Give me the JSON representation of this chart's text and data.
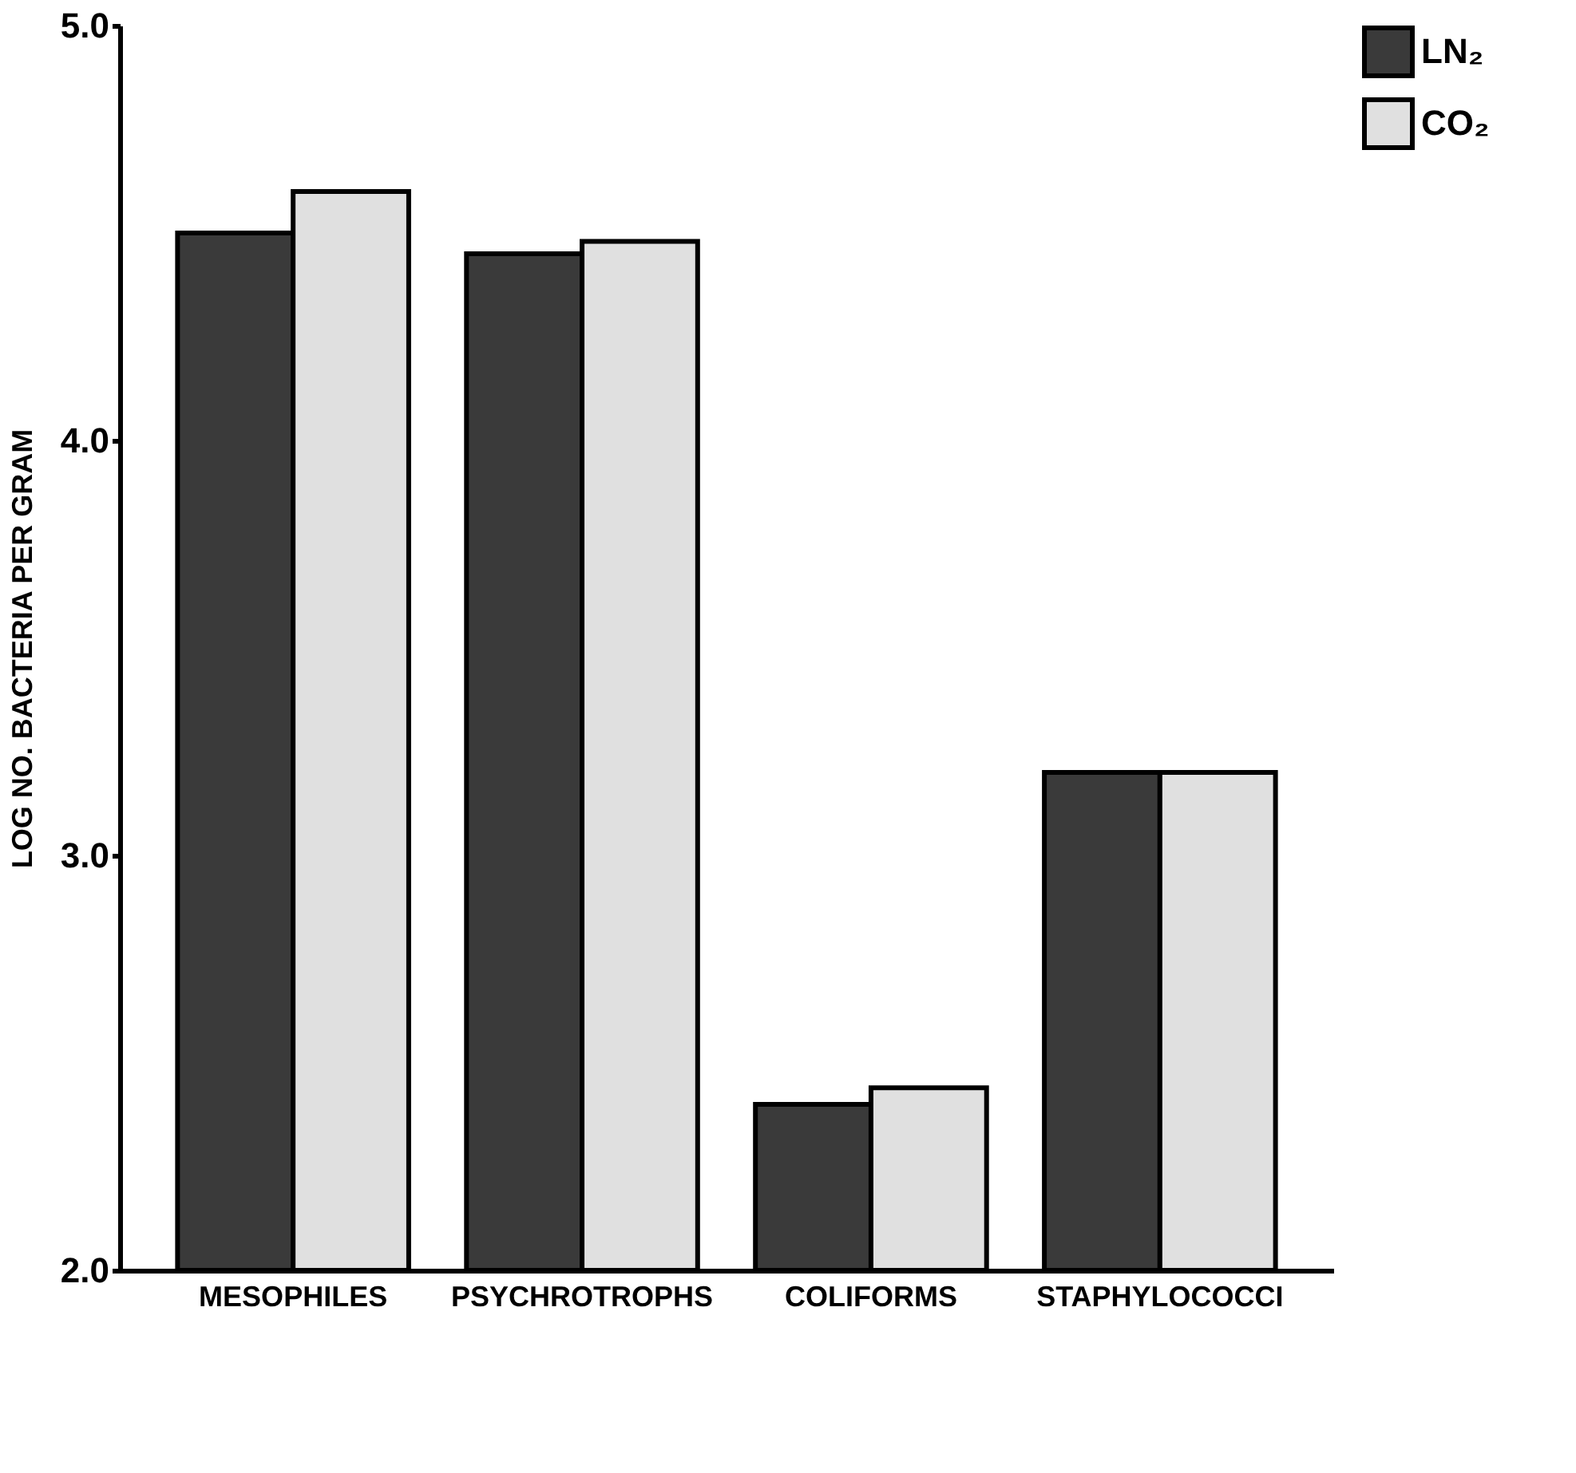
{
  "chart_data": {
    "type": "bar",
    "ylabel": "LOG NO. BACTERIA PER GRAM",
    "categories": [
      "MESOPHILES",
      "PSYCHROTROPHS",
      "COLIFORMS",
      "STAPHYLOCOCCI"
    ],
    "series": [
      {
        "name": "LN₂",
        "color": "#3a3a3a",
        "values": [
          4.5,
          4.45,
          2.4,
          3.2
        ]
      },
      {
        "name": "CO₂",
        "color": "#e0e0e0",
        "values": [
          4.6,
          4.48,
          2.44,
          3.2
        ]
      }
    ],
    "ylim": [
      2,
      5
    ],
    "yticks": [
      {
        "value": 2,
        "label": "2.0"
      },
      {
        "value": 3,
        "label": "3.0"
      },
      {
        "value": 4,
        "label": "4.0"
      },
      {
        "value": 5,
        "label": "5.0"
      }
    ],
    "grid": false,
    "legend": "right"
  }
}
